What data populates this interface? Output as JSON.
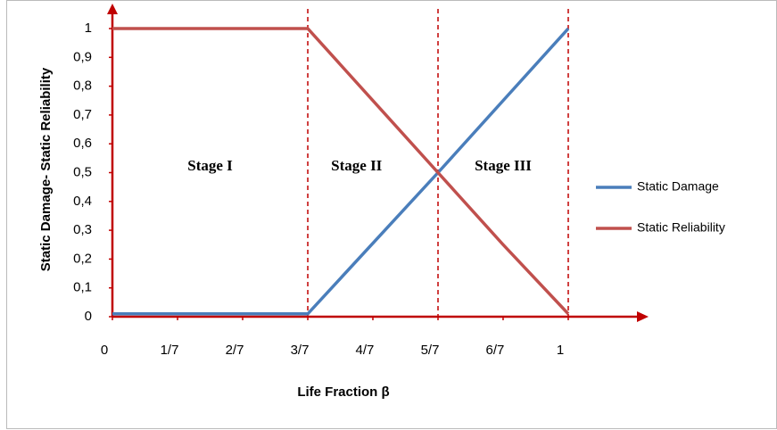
{
  "chart_data": {
    "type": "line",
    "xlabel": "Life Fraction β",
    "ylabel": "Static Damage-  Static Reliability",
    "x": [
      0,
      0.4286,
      0.7143,
      0.8571,
      1
    ],
    "series": [
      {
        "name": "Static Damage",
        "color": "#4a7ebb",
        "values": [
          0.01,
          0.01,
          0.5,
          0.75,
          1
        ]
      },
      {
        "name": "Static Reliability",
        "color": "#c0504d",
        "values": [
          1,
          1,
          0.5,
          0.25,
          0.01
        ]
      }
    ],
    "xlim": [
      0,
      1
    ],
    "ylim": [
      0,
      1
    ],
    "xticks": [
      0,
      {
        "value": 0.1429,
        "label": "1/7"
      },
      {
        "value": 0.2857,
        "label": "2/7"
      },
      {
        "value": 0.4286,
        "label": "3/7"
      },
      {
        "value": 0.5714,
        "label": "4/7"
      },
      {
        "value": 0.7143,
        "label": "5/7"
      },
      {
        "value": 0.8571,
        "label": "6/7"
      },
      1
    ],
    "yticks": [
      0,
      {
        "value": 0.1,
        "label": "0,1"
      },
      {
        "value": 0.2,
        "label": "0,2"
      },
      {
        "value": 0.3,
        "label": "0,3"
      },
      {
        "value": 0.4,
        "label": "0,4"
      },
      {
        "value": 0.5,
        "label": "0,5"
      },
      {
        "value": 0.6,
        "label": "0,6"
      },
      {
        "value": 0.7,
        "label": "0,7"
      },
      {
        "value": 0.8,
        "label": "0,8"
      },
      {
        "value": 0.9,
        "label": "0,9"
      },
      1
    ],
    "vlines": [
      0.4286,
      0.7143,
      1
    ],
    "vline_color": "#c00000",
    "axis_color": "#c00000",
    "annotations": [
      {
        "text": "Stage I",
        "x": 0.2143,
        "y": 0.52
      },
      {
        "text": "Stage II",
        "x": 0.5357,
        "y": 0.52
      },
      {
        "text": "Stage III",
        "x": 0.8571,
        "y": 0.52
      }
    ],
    "legend": "right"
  }
}
